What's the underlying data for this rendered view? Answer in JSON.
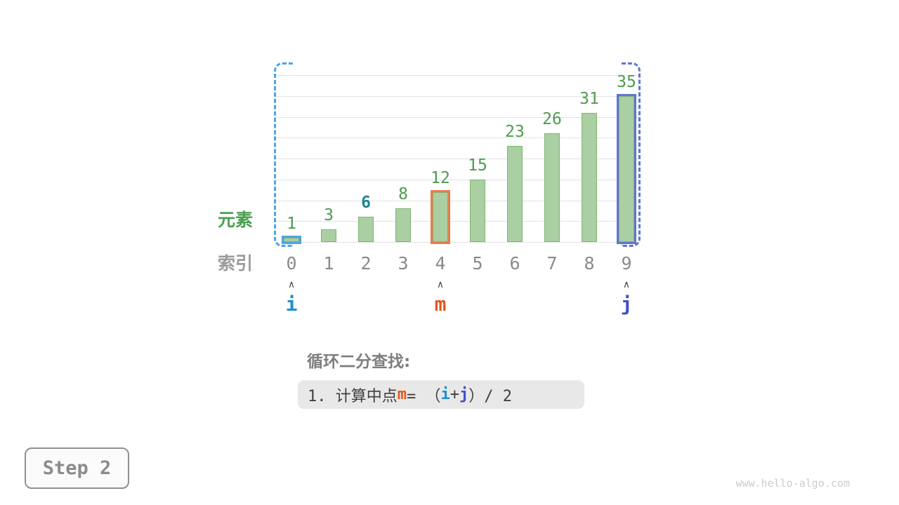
{
  "page": {
    "step_label": "Step 2",
    "watermark": "www.hello-algo.com"
  },
  "chart_data": {
    "type": "bar",
    "categories": [
      "0",
      "1",
      "2",
      "3",
      "4",
      "5",
      "6",
      "7",
      "8",
      "9"
    ],
    "values": [
      1,
      3,
      6,
      8,
      12,
      15,
      23,
      26,
      31,
      35
    ],
    "xlabel": "索引",
    "ylabel": "元素",
    "ylim": [
      0,
      40
    ],
    "grid": true,
    "gridline_step": 5,
    "legend": "none",
    "bar_fill": "#a9cfa2",
    "bar_border": "#7fb56f",
    "value_label_color": "#4e9b50",
    "target_index": 2,
    "target_label_color": "#1f868c",
    "highlights": [
      {
        "index": 0,
        "color": "#4da4e8",
        "role": "left-pointer-bar"
      },
      {
        "index": 4,
        "color": "#ed7a4c",
        "role": "mid-pointer-bar"
      },
      {
        "index": 9,
        "color": "#6274d0",
        "role": "right-pointer-bar"
      }
    ],
    "pointer_marker": "∧",
    "pointers": [
      {
        "label": "i",
        "index": 0,
        "color": "#1e8fd5"
      },
      {
        "label": "m",
        "index": 4,
        "color": "#e2571b"
      },
      {
        "label": "j",
        "index": 9,
        "color": "#4052c8"
      }
    ],
    "range_brackets": [
      {
        "side": "left",
        "color": "#4da4e8"
      },
      {
        "side": "right",
        "color": "#6274d0"
      }
    ]
  },
  "caption": {
    "heading": "循环二分查找:",
    "code_segments": [
      {
        "text": "1. 计算中点 ",
        "style": "plain",
        "color": "#3f3f3f"
      },
      {
        "text": "m",
        "style": "m",
        "color": "#e2571b"
      },
      {
        "text": " = （",
        "style": "plain",
        "color": "#3f3f3f"
      },
      {
        "text": "i",
        "style": "i",
        "color": "#1e8fd5"
      },
      {
        "text": " + ",
        "style": "plain",
        "color": "#3f3f3f"
      },
      {
        "text": "j",
        "style": "j",
        "color": "#4052c8"
      },
      {
        "text": "）/ 2",
        "style": "plain",
        "color": "#3f3f3f"
      }
    ]
  }
}
